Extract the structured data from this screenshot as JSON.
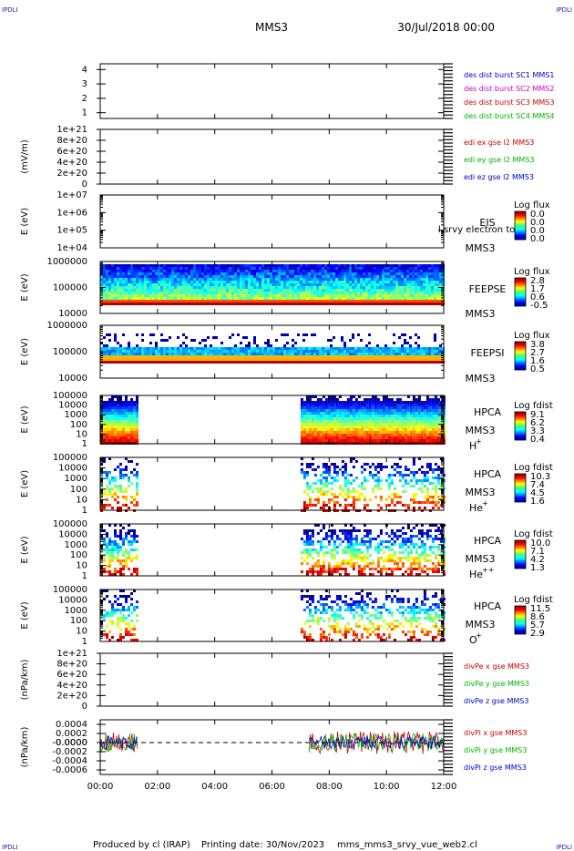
{
  "header": {
    "corner_tl": "IPDLI",
    "corner_tr": "IPDLI",
    "corner_bl": "IPDLI",
    "corner_br": "IPDLI",
    "spacecraft": "MMS3",
    "date": "30/Jul/2018 00:00"
  },
  "footer": {
    "produced": "Produced by cl (IRAP)",
    "printing_date": "Printing date: 30/Nov/2023",
    "script": "mms_mms3_srvy_vue_web2.cl"
  },
  "chart_data": [
    {
      "type": "line",
      "ylabel": "",
      "yticks": [
        "1",
        "2",
        "3",
        "4"
      ],
      "ylim": [
        0.6,
        4.4
      ],
      "legend": [
        {
          "text": "des dist burst SC1 MMS1",
          "color": "#0000c8"
        },
        {
          "text": "des dist burst SC2 MMS2",
          "color": "#c800c8"
        },
        {
          "text": "des dist burst SC3 MMS3",
          "color": "#c80000"
        },
        {
          "text": "des dist burst SC4 MMS4",
          "color": "#00b400"
        }
      ],
      "series": []
    },
    {
      "type": "line",
      "ylabel": "(mV/m)",
      "yticks": [
        "0",
        "2e+20",
        "4e+20",
        "6e+20",
        "8e+20",
        "1e+21"
      ],
      "ylim": [
        0,
        1e+21
      ],
      "zero_line": 0,
      "legend": [
        {
          "text": "edi ex gse l2 MMS3",
          "color": "#c80000"
        },
        {
          "text": "edi ey gse l2 MMS3",
          "color": "#00b400"
        },
        {
          "text": "edi ez gse l2 MMS3",
          "color": "#0000c8"
        }
      ],
      "series": []
    },
    {
      "type": "heatmap",
      "ylabel": "E (eV)",
      "yticks": [
        "1e+04",
        "1e+05",
        "1e+06",
        "1e+07"
      ],
      "yscale": "log",
      "ylim": [
        10000,
        10000000
      ],
      "instrument": [
        "EIS",
        "MMS3"
      ],
      "overlay_text": "l srvy electron to",
      "colorbar": {
        "title": "Log flux",
        "ticks": [
          "0.0",
          "0.0",
          "0.0",
          "0.0"
        ]
      },
      "coverage": []
    },
    {
      "type": "heatmap",
      "ylabel": "E (eV)",
      "yticks": [
        "10000",
        "100000",
        "1000000"
      ],
      "yscale": "log",
      "ylim": [
        10000,
        1000000
      ],
      "instrument": [
        "FEEPSE",
        "MMS3"
      ],
      "colorbar": {
        "title": "Log flux",
        "ticks": [
          "2.8",
          "1.7",
          "0.6",
          "-0.5"
        ]
      },
      "coverage": [
        [
          0.0,
          12.0
        ]
      ]
    },
    {
      "type": "heatmap",
      "ylabel": "E (eV)",
      "yticks": [
        "10000",
        "100000",
        "1000000"
      ],
      "yscale": "log",
      "ylim": [
        10000,
        1000000
      ],
      "instrument": [
        "FEEPSI",
        "MMS3"
      ],
      "colorbar": {
        "title": "Log flux",
        "ticks": [
          "3.8",
          "2.7",
          "1.6",
          "0.5"
        ]
      },
      "coverage": [
        [
          0.0,
          12.0
        ]
      ]
    },
    {
      "type": "heatmap",
      "ylabel": "E (eV)",
      "yticks": [
        "1",
        "10",
        "100",
        "1000",
        "10000",
        "100000"
      ],
      "yscale": "log",
      "ylim": [
        1,
        100000
      ],
      "instrument": [
        "HPCA",
        "MMS3"
      ],
      "species": "H",
      "species_sup": "+",
      "colorbar": {
        "title": "Log fdist",
        "ticks": [
          "9.1",
          "6.2",
          "3.3",
          "0.4"
        ]
      },
      "coverage": [
        [
          0.0,
          1.3
        ],
        [
          7.0,
          12.0
        ]
      ]
    },
    {
      "type": "heatmap",
      "ylabel": "E (eV)",
      "yticks": [
        "1",
        "10",
        "100",
        "1000",
        "10000",
        "100000"
      ],
      "yscale": "log",
      "ylim": [
        1,
        100000
      ],
      "instrument": [
        "HPCA",
        "MMS3"
      ],
      "species": "He",
      "species_sup": "+",
      "colorbar": {
        "title": "Log fdist",
        "ticks": [
          "10.3",
          "7.4",
          "4.5",
          "1.6"
        ]
      },
      "coverage": [
        [
          0.0,
          1.3
        ],
        [
          7.0,
          12.0
        ]
      ]
    },
    {
      "type": "heatmap",
      "ylabel": "E (eV)",
      "yticks": [
        "1",
        "10",
        "100",
        "1000",
        "10000",
        "100000"
      ],
      "yscale": "log",
      "ylim": [
        1,
        100000
      ],
      "instrument": [
        "HPCA",
        "MMS3"
      ],
      "species": "He",
      "species_sup": "++",
      "colorbar": {
        "title": "Log fdist",
        "ticks": [
          "10.0",
          "7.1",
          "4.2",
          "1.3"
        ]
      },
      "coverage": [
        [
          0.0,
          1.3
        ],
        [
          7.0,
          12.0
        ]
      ]
    },
    {
      "type": "heatmap",
      "ylabel": "E (eV)",
      "yticks": [
        "1",
        "10",
        "100",
        "1000",
        "10000",
        "100000"
      ],
      "yscale": "log",
      "ylim": [
        1,
        100000
      ],
      "instrument": [
        "HPCA",
        "MMS3"
      ],
      "species": "O",
      "species_sup": "+",
      "colorbar": {
        "title": "Log fdist",
        "ticks": [
          "11.5",
          "8.6",
          "5.7",
          "2.9"
        ]
      },
      "coverage": [
        [
          0.0,
          1.3
        ],
        [
          7.0,
          12.0
        ]
      ]
    },
    {
      "type": "line",
      "ylabel": "(nPa/km)",
      "yticks": [
        "0",
        "2e+20",
        "4e+20",
        "6e+20",
        "8e+20",
        "1e+21"
      ],
      "ylim": [
        0,
        1e+21
      ],
      "zero_line": 0,
      "legend": [
        {
          "text": "divPe x gse MMS3",
          "color": "#c80000"
        },
        {
          "text": "divPe y gse MMS3",
          "color": "#00b400"
        },
        {
          "text": "divPe z gse MMS3",
          "color": "#0000c8"
        }
      ],
      "series": []
    },
    {
      "type": "line",
      "ylabel": "(nPa/km)",
      "yticks": [
        "-0.0006",
        "-0.0004",
        "-0.0002",
        "-0.0000",
        "0.0000",
        "0.0002",
        "0.0004"
      ],
      "ylim": [
        -0.0007,
        0.0005
      ],
      "zero_line": 0,
      "legend": [
        {
          "text": "divPi x gse MMS3",
          "color": "#c80000"
        },
        {
          "text": "divPi y gse MMS3",
          "color": "#00b400"
        },
        {
          "text": "divPi z gse MMS3",
          "color": "#0000c8"
        }
      ],
      "coverage": [
        [
          0.0,
          1.3
        ],
        [
          7.3,
          12.0
        ]
      ],
      "amplitude": {
        "x": 0.00025,
        "y": 0.0002,
        "z": 0.00015
      }
    }
  ],
  "time_axis": {
    "xlim": [
      0,
      12
    ],
    "ticks": [
      0,
      2,
      4,
      6,
      8,
      10,
      12
    ],
    "labels": [
      "00:00",
      "02:00",
      "04:00",
      "06:00",
      "08:00",
      "10:00",
      "12:00"
    ]
  }
}
